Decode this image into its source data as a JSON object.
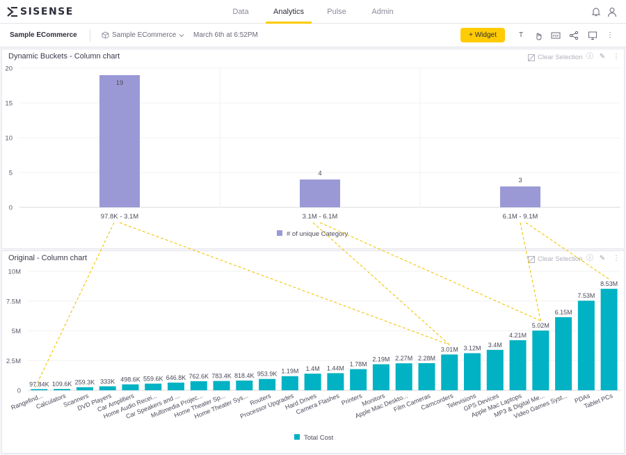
{
  "app": {
    "logo_text": "SISENSE",
    "nav": [
      "Data",
      "Analytics",
      "Pulse",
      "Admin"
    ],
    "active_nav": "Analytics"
  },
  "toolbar": {
    "dashboard_title": "Sample ECommerce",
    "datasource": "Sample ECommerce",
    "timestamp": "March 6th at 6:52PM",
    "widget_button": "+ Widget"
  },
  "widgets": [
    {
      "title": "Dynamic Buckets - Column chart",
      "clear_selection": "Clear Selection"
    },
    {
      "title": "Original - Column chart",
      "clear_selection": "Clear Selection"
    }
  ],
  "colors": {
    "accent": "#ffcb05",
    "bucket_bar": "#9a99d6",
    "cost_bar": "#00b2c3",
    "annotation_line": "#f2c400"
  },
  "chart_data": [
    {
      "type": "bar",
      "title": "",
      "categories": [
        "97.8K - 3.1M",
        "3.1M - 6.1M",
        "6.1M - 9.1M"
      ],
      "series": [
        {
          "name": "# of unique Category",
          "values": [
            19,
            4,
            3
          ]
        }
      ],
      "data_labels": [
        "19",
        "4",
        "3"
      ],
      "ylim": [
        0,
        20
      ],
      "yticks": [
        0,
        5,
        10,
        15,
        20
      ],
      "grid": true,
      "legend": "bottom"
    },
    {
      "type": "bar",
      "title": "",
      "categories": [
        "Rangefind...",
        "Calculators",
        "Scanners",
        "DVD Players",
        "Car Amplifiers",
        "Home Audio Recei...",
        "Car Speakers and ...",
        "Multimedia Projec...",
        "Home Theater Sp...",
        "Home Theater Sys...",
        "Routers",
        "Processor Upgrades",
        "Hard Drives",
        "Camera Flashes",
        "Printers",
        "Monitors",
        "Apple Mac Deskto...",
        "Film Cameras",
        "Camcorders",
        "Televisions",
        "GPS Devices",
        "Apple Mac Laptops",
        "MP3 & Digital Me...",
        "Video Games Syst...",
        "PDAs",
        "Tablet PCs"
      ],
      "series": [
        {
          "name": "Total Cost",
          "values": [
            97840,
            109600,
            259300,
            333000,
            498600,
            559600,
            646800,
            762600,
            783400,
            818400,
            953900,
            1190000,
            1400000,
            1440000,
            1780000,
            2190000,
            2270000,
            2280000,
            3010000,
            3120000,
            3400000,
            4210000,
            5020000,
            6150000,
            7530000,
            8530000
          ]
        }
      ],
      "data_labels": [
        "97.84K",
        "109.6K",
        "259.3K",
        "333K",
        "498.6K",
        "559.6K",
        "646.8K",
        "762.6K",
        "783.4K",
        "818.4K",
        "953.9K",
        "1.19M",
        "1.4M",
        "1.44M",
        "1.78M",
        "2.19M",
        "2.27M",
        "2.28M",
        "3.01M",
        "3.12M",
        "3.4M",
        "4.21M",
        "5.02M",
        "6.15M",
        "7.53M",
        "8.53M"
      ],
      "ylim": [
        0,
        10000000
      ],
      "yticks": [
        0,
        2500000,
        5000000,
        7500000,
        10000000
      ],
      "ytick_labels": [
        "0",
        "2.5M",
        "5M",
        "7.5M",
        "10M"
      ],
      "grid": true,
      "legend": "bottom"
    }
  ]
}
